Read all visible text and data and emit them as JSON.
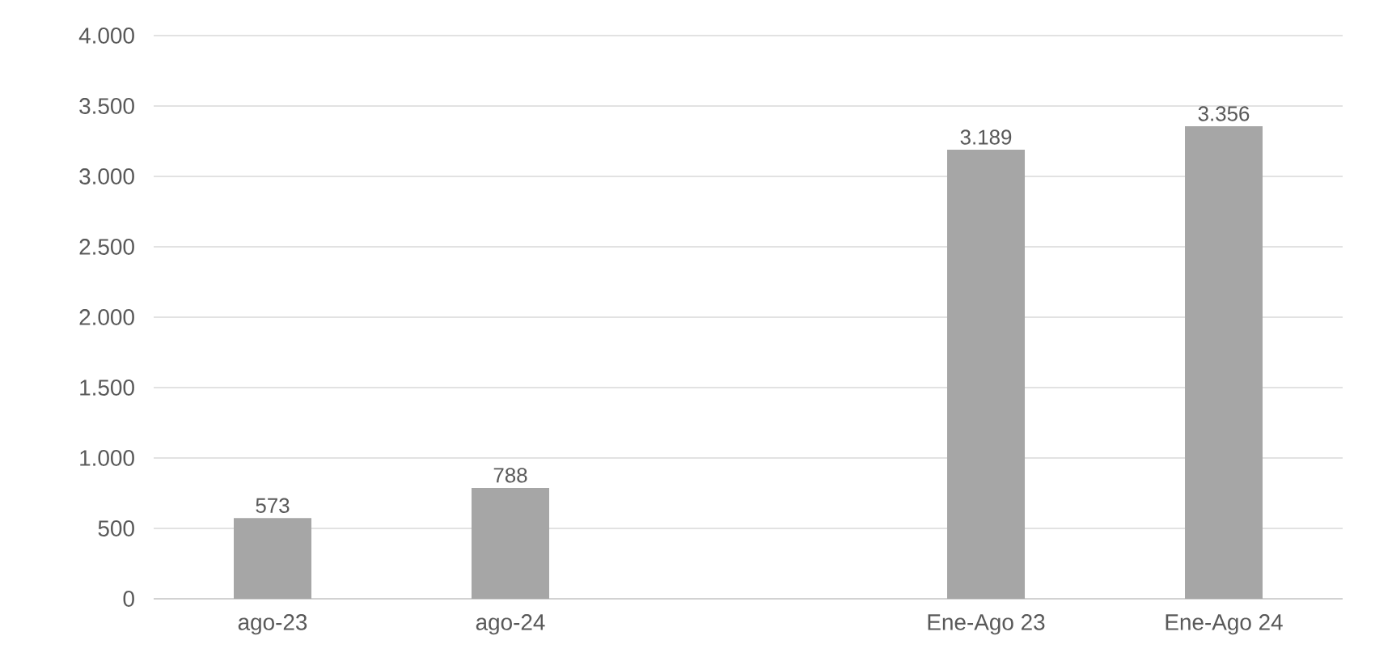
{
  "chart_data": {
    "type": "bar",
    "categories": [
      "ago-23",
      "ago-24",
      null,
      "Ene-Ago 23",
      "Ene-Ago 24"
    ],
    "values": [
      573,
      788,
      null,
      3189,
      3356
    ],
    "value_labels": [
      "573",
      "788",
      null,
      "3.189",
      "3.356"
    ],
    "color": "#a6a6a6",
    "ylim": [
      0,
      4000
    ],
    "yticks": [
      {
        "value": 0,
        "label": "0"
      },
      {
        "value": 500,
        "label": "500"
      },
      {
        "value": 1000,
        "label": "1.000"
      },
      {
        "value": 1500,
        "label": "1.500"
      },
      {
        "value": 2000,
        "label": "2.000"
      },
      {
        "value": 2500,
        "label": "2.500"
      },
      {
        "value": 3000,
        "label": "3.000"
      },
      {
        "value": 3500,
        "label": "3.500"
      },
      {
        "value": 4000,
        "label": "4.000"
      }
    ],
    "grid": "y"
  }
}
